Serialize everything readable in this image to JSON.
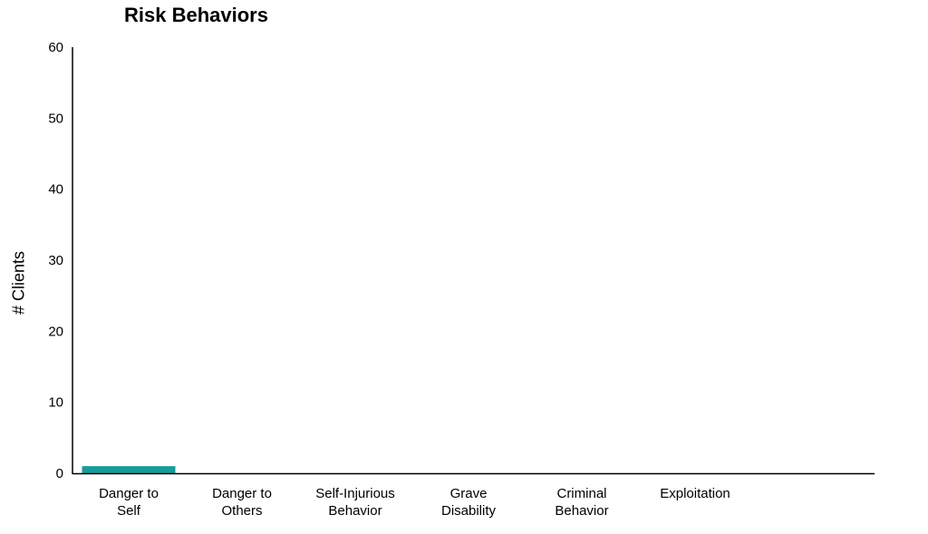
{
  "chart_data": {
    "type": "bar",
    "title": "Risk Behaviors",
    "xlabel": "",
    "ylabel": "# Clients",
    "ylim": [
      0,
      60
    ],
    "yticks": [
      0,
      10,
      20,
      30,
      40,
      50,
      60
    ],
    "categories": [
      [
        "Danger to",
        "Self"
      ],
      [
        "Danger to",
        "Others"
      ],
      [
        "Self-Injurious",
        "Behavior"
      ],
      [
        "Grave",
        "Disability"
      ],
      [
        "Criminal",
        "Behavior"
      ],
      [
        "Exploitation"
      ]
    ],
    "values": [
      1,
      0,
      0,
      0,
      0,
      0
    ],
    "bar_color": "#169c9a",
    "grid": false,
    "legend": "none"
  }
}
